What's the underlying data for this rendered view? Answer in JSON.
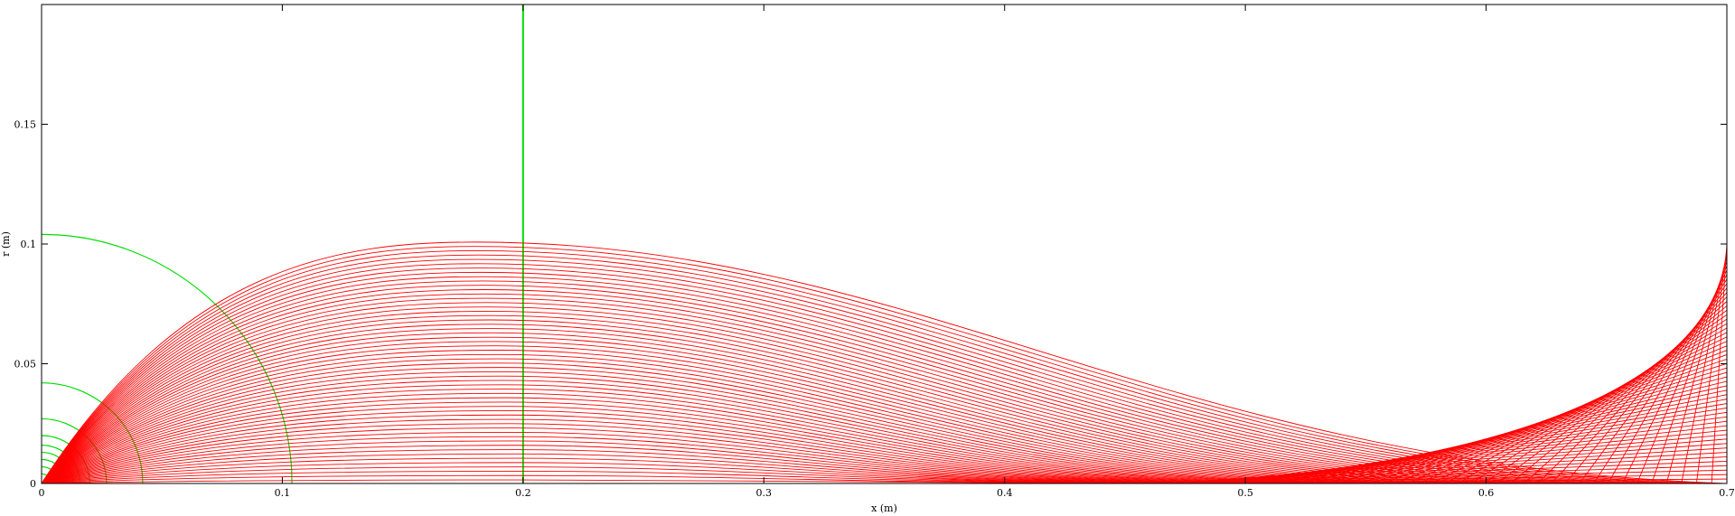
{
  "chart_data": {
    "type": "line",
    "title": "",
    "xlabel": "x (m)",
    "ylabel": "r (m)",
    "xlim": [
      0,
      0.7
    ],
    "ylim": [
      0,
      0.2
    ],
    "grid": false,
    "legend": "none",
    "xticks": [
      0,
      0.1,
      0.2,
      0.3,
      0.4,
      0.5,
      0.6,
      0.7
    ],
    "xtick_labels": [
      "0",
      "0.1",
      "0.2",
      "0.3",
      "0.4",
      "0.5",
      "0.6",
      "0.7"
    ],
    "yticks": [
      0,
      0.05,
      0.1,
      0.15
    ],
    "ytick_labels": [
      "0",
      "0.05",
      "0.1",
      "0.15"
    ],
    "colors": {
      "rays": "#ff0000",
      "wavefronts": "#00dd00",
      "axes": "#000000"
    },
    "ray_bundle": {
      "origin": [
        0,
        0
      ],
      "count": 56,
      "peak_x": [
        0.2,
        0.18
      ],
      "peak_r": [
        0.0015,
        0.1008
      ],
      "focus_x": [
        0.45,
        0.7
      ],
      "exit_r_at_xmax": [
        0.0,
        0.102
      ]
    },
    "wavefronts": {
      "arc_radii": [
        0.004,
        0.007,
        0.01,
        0.013,
        0.016,
        0.02,
        0.027,
        0.042,
        0.104
      ],
      "vertical_front_x": 0.2
    }
  }
}
